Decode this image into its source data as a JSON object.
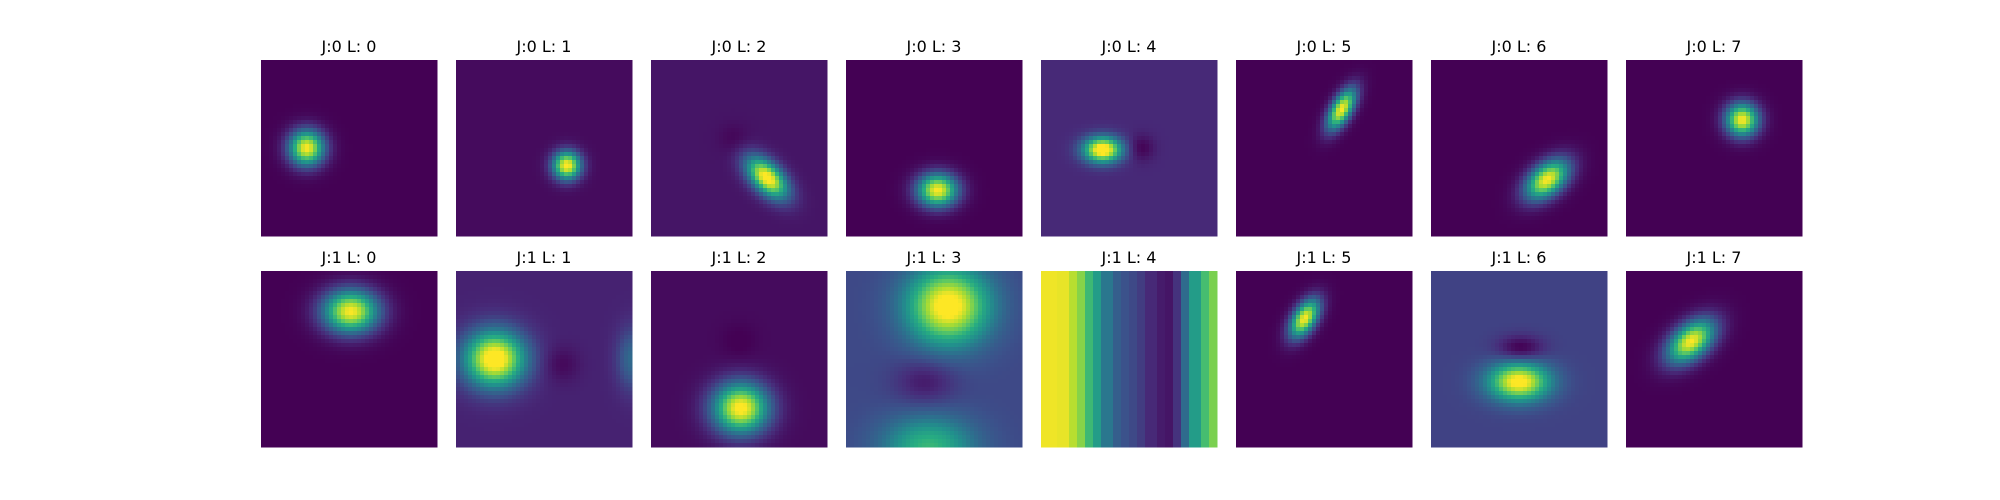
{
  "chart_data": {
    "type": "heatmap",
    "colormap": "viridis",
    "grid": false,
    "rows": 2,
    "cols": 8,
    "panels": [
      {
        "title": "J:0 L: 0",
        "background": 0.0,
        "blobs": [
          {
            "cx": 0.26,
            "cy": 0.5,
            "sx": 0.07,
            "sy": 0.07,
            "amp": 1.0,
            "angle": 0
          }
        ]
      },
      {
        "title": "J:0 L: 1",
        "background": 0.03,
        "blobs": [
          {
            "cx": 0.63,
            "cy": 0.6,
            "sx": 0.055,
            "sy": 0.055,
            "amp": 1.0,
            "angle": 0
          }
        ]
      },
      {
        "title": "J:0 L: 2",
        "background": 0.06,
        "blobs": [
          {
            "cx": 0.66,
            "cy": 0.67,
            "sx": 0.1,
            "sy": 0.055,
            "amp": 1.0,
            "angle": 45
          },
          {
            "cx": 0.47,
            "cy": 0.45,
            "sx": 0.06,
            "sy": 0.06,
            "amp": -0.05,
            "angle": 0
          }
        ]
      },
      {
        "title": "J:0 L: 3",
        "background": 0.0,
        "blobs": [
          {
            "cx": 0.52,
            "cy": 0.74,
            "sx": 0.08,
            "sy": 0.065,
            "amp": 1.0,
            "angle": 0
          }
        ]
      },
      {
        "title": "J:0 L: 4",
        "background": 0.12,
        "blobs": [
          {
            "cx": 0.35,
            "cy": 0.51,
            "sx": 0.075,
            "sy": 0.05,
            "amp": 1.0,
            "angle": 0
          },
          {
            "cx": 0.57,
            "cy": 0.5,
            "sx": 0.05,
            "sy": 0.05,
            "amp": -0.12,
            "angle": 0
          }
        ]
      },
      {
        "title": "J:0 L: 5",
        "background": 0.0,
        "blobs": [
          {
            "cx": 0.6,
            "cy": 0.28,
            "sx": 0.09,
            "sy": 0.04,
            "amp": 1.0,
            "angle": -60
          }
        ]
      },
      {
        "title": "J:0 L: 6",
        "background": 0.0,
        "blobs": [
          {
            "cx": 0.66,
            "cy": 0.68,
            "sx": 0.1,
            "sy": 0.06,
            "amp": 1.0,
            "angle": -40
          }
        ]
      },
      {
        "title": "J:0 L: 7",
        "background": 0.0,
        "blobs": [
          {
            "cx": 0.66,
            "cy": 0.34,
            "sx": 0.065,
            "sy": 0.065,
            "amp": 1.0,
            "angle": 0
          }
        ]
      },
      {
        "title": "J:1 L: 0",
        "background": 0.0,
        "blobs": [
          {
            "cx": 0.51,
            "cy": 0.23,
            "sx": 0.11,
            "sy": 0.085,
            "amp": 1.0,
            "angle": 0
          }
        ]
      },
      {
        "title": "J:1 L: 1",
        "background": 0.1,
        "blobs": [
          {
            "cx": 0.22,
            "cy": 0.5,
            "sx": 0.12,
            "sy": 0.11,
            "amp": 1.0,
            "angle": 0
          },
          {
            "cx": 0.6,
            "cy": 0.53,
            "sx": 0.07,
            "sy": 0.07,
            "amp": -0.08,
            "angle": 0
          },
          {
            "cx": 1.0,
            "cy": 0.5,
            "sx": 0.06,
            "sy": 0.12,
            "amp": 0.25,
            "angle": 0
          }
        ]
      },
      {
        "title": "J:1 L: 2",
        "background": 0.03,
        "blobs": [
          {
            "cx": 0.51,
            "cy": 0.78,
            "sx": 0.11,
            "sy": 0.1,
            "amp": 1.0,
            "angle": 0
          },
          {
            "cx": 0.5,
            "cy": 0.4,
            "sx": 0.07,
            "sy": 0.07,
            "amp": -0.04,
            "angle": 0
          }
        ]
      },
      {
        "title": "J:1 L: 3",
        "background": 0.22,
        "blobs": [
          {
            "cx": 0.58,
            "cy": 0.2,
            "sx": 0.16,
            "sy": 0.15,
            "amp": 0.85,
            "angle": 0
          },
          {
            "cx": 0.47,
            "cy": 1.0,
            "sx": 0.18,
            "sy": 0.12,
            "amp": 0.45,
            "angle": 0
          },
          {
            "cx": 0.45,
            "cy": 0.63,
            "sx": 0.12,
            "sy": 0.09,
            "amp": -0.15,
            "angle": 0
          }
        ]
      },
      {
        "title": "J:1 L: 4",
        "background": 0.5,
        "stripes": [
          0.98,
          0.98,
          0.97,
          0.9,
          0.82,
          0.68,
          0.55,
          0.4,
          0.3,
          0.25,
          0.22,
          0.18,
          0.12,
          0.08,
          0.06,
          0.15,
          0.35,
          0.55,
          0.7,
          0.8
        ]
      },
      {
        "title": "J:1 L: 5",
        "background": 0.0,
        "blobs": [
          {
            "cx": 0.39,
            "cy": 0.27,
            "sx": 0.085,
            "sy": 0.045,
            "amp": 1.0,
            "angle": -58
          }
        ]
      },
      {
        "title": "J:1 L: 6",
        "background": 0.2,
        "blobs": [
          {
            "cx": 0.5,
            "cy": 0.63,
            "sx": 0.12,
            "sy": 0.075,
            "amp": 0.85,
            "angle": 0
          },
          {
            "cx": 0.51,
            "cy": 0.44,
            "sx": 0.09,
            "sy": 0.05,
            "amp": -0.22,
            "angle": 0
          }
        ]
      },
      {
        "title": "J:1 L: 7",
        "background": 0.0,
        "blobs": [
          {
            "cx": 0.37,
            "cy": 0.4,
            "sx": 0.11,
            "sy": 0.065,
            "amp": 1.0,
            "angle": -40
          }
        ]
      }
    ]
  }
}
